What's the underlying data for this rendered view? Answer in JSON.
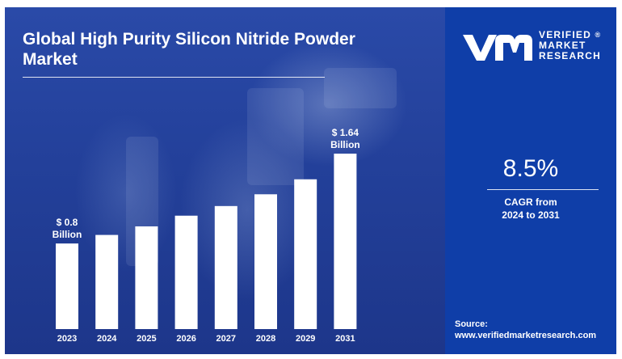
{
  "title": "Global High Purity Silicon Nitride Powder Market",
  "brand": {
    "line1": "VERIFIED",
    "line2": "MARKET",
    "line3": "RESEARCH",
    "reg": "®"
  },
  "cagr": {
    "value": "8.5%",
    "label_line1": "CAGR from",
    "label_line2": "2024 to 2031"
  },
  "source": {
    "label": "Source:",
    "url": "www.verifiedmarketresearch.com"
  },
  "colors": {
    "background": "#23409a",
    "panel": "#0f3ea8",
    "bars": "#ffffff",
    "text": "#ffffff"
  },
  "chart_data": {
    "type": "bar",
    "title": "Global High Purity Silicon Nitride Powder Market",
    "categories": [
      "2023",
      "2024",
      "2025",
      "2026",
      "2027",
      "2028",
      "2029",
      "2031"
    ],
    "values": [
      0.8,
      0.88,
      0.96,
      1.06,
      1.15,
      1.26,
      1.4,
      1.64
    ],
    "annotations": [
      {
        "category": "2023",
        "line1": "$ 0.8",
        "line2": "Billion"
      },
      {
        "category": "2031",
        "line1": "$ 1.64",
        "line2": "Billion"
      }
    ],
    "xlabel": "",
    "ylabel": "",
    "ylim": [
      0,
      1.8
    ],
    "grid": false,
    "legend": "none"
  }
}
